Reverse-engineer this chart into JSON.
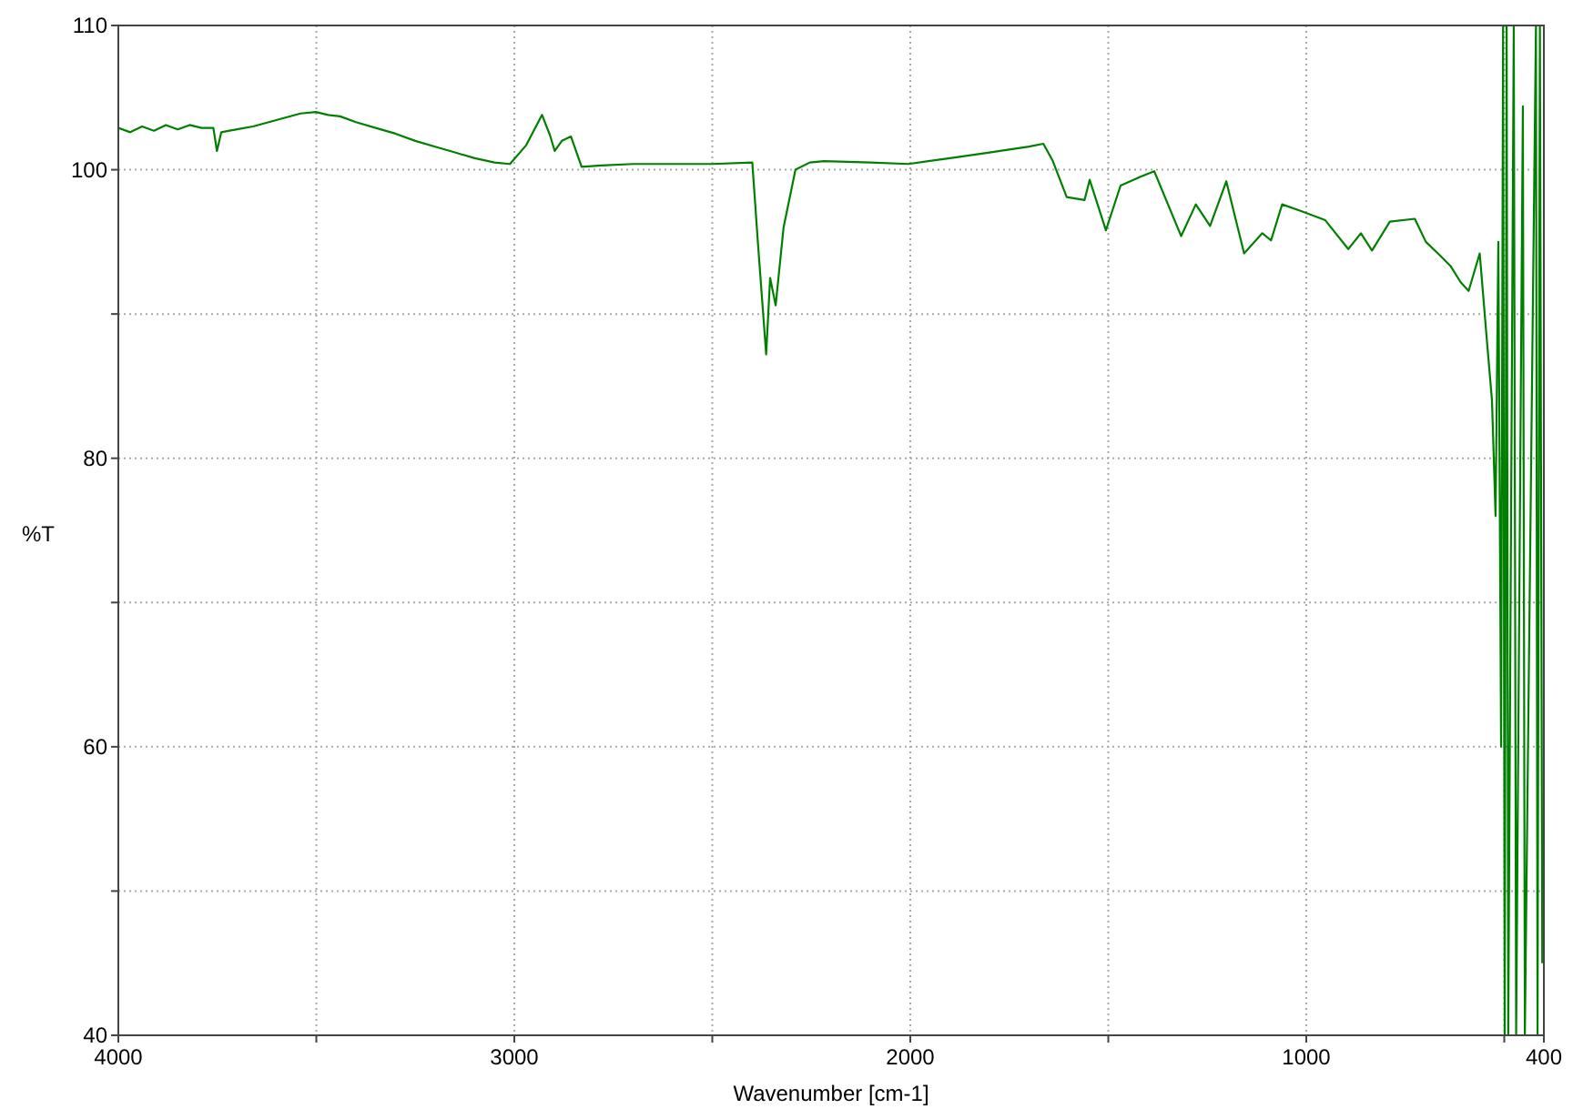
{
  "chart_data": {
    "type": "line",
    "xlabel": "Wavenumber [cm-1]",
    "ylabel": "%T",
    "xlim": [
      4000,
      400
    ],
    "ylim": [
      40,
      110
    ],
    "xticks": [
      4000,
      {
        "value": 3500,
        "label": null
      },
      3000,
      {
        "value": 2500,
        "label": null
      },
      2000,
      {
        "value": 1500,
        "label": null
      },
      1000,
      {
        "value": 500,
        "label": null
      },
      400
    ],
    "yticks": [
      40,
      {
        "value": 50,
        "label": null
      },
      60,
      {
        "value": 70,
        "label": null
      },
      80,
      {
        "value": 90,
        "label": null
      },
      100,
      110
    ],
    "grid": true,
    "series": [
      {
        "color": "#008000",
        "x": [
          4000,
          3970,
          3940,
          3910,
          3880,
          3850,
          3820,
          3790,
          3760,
          3751,
          3740,
          3700,
          3660,
          3620,
          3580,
          3540,
          3501,
          3470,
          3440,
          3400,
          3350,
          3300,
          3250,
          3200,
          3150,
          3100,
          3050,
          3011,
          2970,
          2930,
          2910,
          2898,
          2880,
          2857,
          2830,
          2780,
          2700,
          2600,
          2500,
          2399,
          2385,
          2364,
          2354,
          2340,
          2320,
          2290,
          2254,
          2218,
          2100,
          2005,
          1900,
          1800,
          1700,
          1664,
          1640,
          1605,
          1560,
          1547,
          1506,
          1469,
          1420,
          1384,
          1316,
          1279,
          1243,
          1202,
          1157,
          1111,
          1089,
          1061,
          1010,
          952,
          894,
          862,
          834,
          789,
          726,
          698,
          660,
          635,
          610,
          590,
          562,
          544,
          531,
          522,
          515,
          508,
          503,
          499,
          494,
          490,
          476,
          470,
          453,
          448,
          420,
          416,
          410,
          404
        ],
        "values": [
          102.9,
          102.6,
          103.0,
          102.7,
          103.1,
          102.8,
          103.1,
          102.9,
          102.9,
          101.3,
          102.6,
          102.8,
          103.0,
          103.3,
          103.6,
          103.9,
          104.0,
          103.8,
          103.7,
          103.3,
          102.9,
          102.5,
          102.0,
          101.6,
          101.2,
          100.8,
          100.5,
          100.4,
          101.7,
          103.8,
          102.4,
          101.3,
          102.0,
          102.3,
          100.2,
          100.3,
          100.4,
          100.4,
          100.4,
          100.5,
          95,
          87.2,
          92.5,
          90.6,
          96,
          100.0,
          100.5,
          100.6,
          100.5,
          100.4,
          100.8,
          101.2,
          101.6,
          101.8,
          100.6,
          98.1,
          97.9,
          99.3,
          95.8,
          98.9,
          99.5,
          99.9,
          95.4,
          97.6,
          96.1,
          99.2,
          94.2,
          95.6,
          95.1,
          97.6,
          97.1,
          96.5,
          94.5,
          95.6,
          94.4,
          96.4,
          96.6,
          95.0,
          94.0,
          93.3,
          92.2,
          91.6,
          94.2,
          88.2,
          84.0,
          76,
          95,
          60,
          110,
          40,
          110,
          40,
          110,
          40,
          104.4,
          40,
          110,
          40,
          110,
          45
        ]
      }
    ]
  }
}
